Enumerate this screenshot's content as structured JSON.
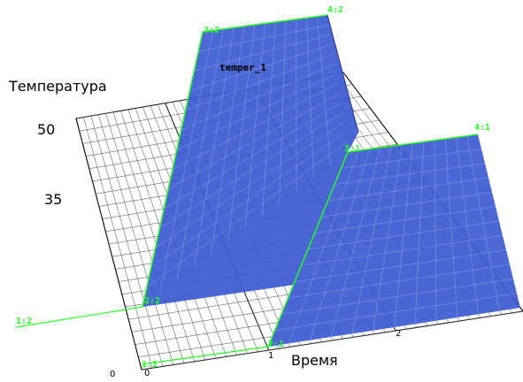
{
  "axes": {
    "y_label": "Температура",
    "x_label": "Время",
    "y_ticks": [
      "50",
      "35"
    ],
    "x_ticks": [
      "0",
      "1",
      "2"
    ],
    "origin_label": "0"
  },
  "surface": {
    "name": "temper_1",
    "fill_color": "#3c5ad2",
    "edge_color": "#22ff22"
  },
  "nodes": [
    {
      "id": "1:1"
    },
    {
      "id": "1:2"
    },
    {
      "id": "2:1"
    },
    {
      "id": "2:2"
    },
    {
      "id": "3:1"
    },
    {
      "id": "3:2"
    },
    {
      "id": "4:1"
    },
    {
      "id": "4:2"
    }
  ]
}
